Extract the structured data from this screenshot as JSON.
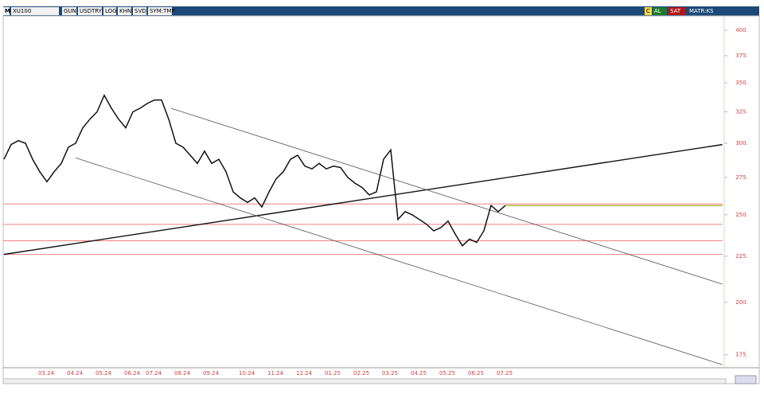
{
  "toolbar": {
    "menu": "M",
    "buttons": [
      "GUN",
      "USDTRY",
      "LOG",
      "KHN",
      "SVD",
      "SYM:TMP"
    ],
    "right_buttons": [
      "C",
      "AL",
      "SAT",
      "MATR:KS"
    ]
  },
  "chart_data": {
    "type": "line",
    "title": "XU100",
    "color": "#111111",
    "log_scale": true,
    "grid": false,
    "categories": [
      null,
      null,
      null,
      null,
      null,
      "03.24",
      null,
      null,
      null,
      "04.24",
      null,
      null,
      null,
      "05.24",
      null,
      null,
      null,
      "06.24",
      null,
      null,
      "07.24",
      null,
      null,
      null,
      "08.24",
      null,
      null,
      null,
      "09.24",
      null,
      null,
      null,
      null,
      "10.24",
      null,
      null,
      null,
      "11.24",
      null,
      null,
      null,
      "12.24",
      null,
      null,
      null,
      "01.25",
      null,
      null,
      null,
      "02.25",
      null,
      null,
      null,
      "03.25",
      null,
      null,
      null,
      "04.25",
      null,
      null,
      null,
      "05.25",
      null,
      null,
      null,
      "06.25",
      null,
      null,
      null,
      "07.25",
      null
    ],
    "values": [
      288,
      299,
      302,
      300,
      288,
      279,
      272,
      279,
      285,
      297,
      300,
      312,
      319,
      325,
      339,
      328,
      319,
      312,
      325,
      328,
      332,
      335,
      335,
      319,
      300,
      297,
      291,
      285,
      294,
      285,
      288,
      279,
      265,
      261,
      258,
      261,
      255,
      265,
      274,
      279,
      288,
      291,
      283,
      281,
      285,
      281,
      283,
      282,
      275,
      271,
      268,
      263,
      265,
      288,
      295,
      247,
      252,
      250,
      247,
      244,
      240,
      242,
      246,
      238,
      231,
      235,
      233,
      240,
      256,
      252,
      256
    ],
    "ylim": [
      170,
      415
    ],
    "yticks": [
      {
        "value": 175,
        "label": "175."
      },
      {
        "value": 200,
        "label": "200."
      },
      {
        "value": 225,
        "label": "225."
      },
      {
        "value": 250,
        "label": "250."
      },
      {
        "value": 275,
        "label": "275."
      },
      {
        "value": 300,
        "label": "300."
      },
      {
        "value": 325,
        "label": "325."
      },
      {
        "value": 350,
        "label": "350."
      },
      {
        "value": 375,
        "label": "375."
      },
      {
        "value": 400,
        "label": "400."
      }
    ],
    "levels": {
      "color": "#f08080",
      "values": [
        257,
        244,
        234,
        226
      ]
    },
    "last_price_line_color": "#a0a000",
    "trendlines": [
      {
        "color": "#111111",
        "x": [
          0,
          100.3
        ],
        "values": [
          226,
          299
        ]
      },
      {
        "color": "#555555",
        "x": [
          23.3,
          100.3
        ],
        "values": [
          328,
          209.5
        ]
      },
      {
        "color": "#555555",
        "x": [
          10,
          100.3
        ],
        "values": [
          289,
          170.6
        ]
      }
    ]
  }
}
